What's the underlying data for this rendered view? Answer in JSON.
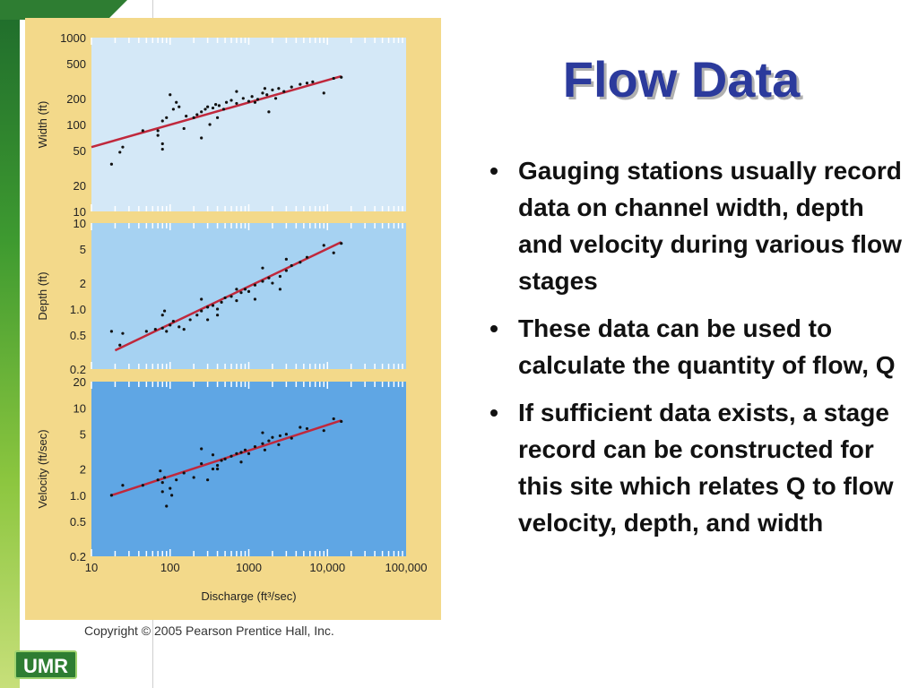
{
  "slide": {
    "title": "Flow Data",
    "bullets": [
      "Gauging stations usually record data on channel width, depth and velocity during various flow stages",
      "These data can be used to calculate the quantity of flow, Q",
      "If sufficient data exists, a stage record can be constructed for this site which relates Q to flow velocity, depth, and width"
    ],
    "bullet_symbol": "•",
    "copyright": "Copyright © 2005 Pearson Prentice Hall, Inc.",
    "logo_text": "UMR"
  },
  "chart_data": [
    {
      "type": "scatter",
      "xlabel": "Discharge (ft³/sec)",
      "ylabel": "Width (ft)",
      "xscale": "log",
      "yscale": "log",
      "xlim": [
        10,
        100000
      ],
      "ylim": [
        10,
        1000
      ],
      "ytick_labels": [
        "1000",
        "500",
        "200",
        "100",
        "50",
        "20",
        "10"
      ],
      "yticks": [
        1000,
        500,
        200,
        100,
        50,
        20,
        10
      ],
      "background": "#d4e8f7",
      "fit_line": [
        [
          10,
          55
        ],
        [
          15000,
          360
        ]
      ],
      "points": [
        [
          18,
          35
        ],
        [
          23,
          48
        ],
        [
          25,
          55
        ],
        [
          80,
          52
        ],
        [
          80,
          60
        ],
        [
          45,
          85
        ],
        [
          70,
          85
        ],
        [
          80,
          110
        ],
        [
          70,
          75
        ],
        [
          90,
          120
        ],
        [
          100,
          220
        ],
        [
          110,
          150
        ],
        [
          120,
          180
        ],
        [
          130,
          160
        ],
        [
          160,
          125
        ],
        [
          200,
          120
        ],
        [
          220,
          130
        ],
        [
          250,
          140
        ],
        [
          280,
          150
        ],
        [
          300,
          160
        ],
        [
          350,
          155
        ],
        [
          380,
          170
        ],
        [
          420,
          165
        ],
        [
          480,
          150
        ],
        [
          520,
          180
        ],
        [
          600,
          190
        ],
        [
          700,
          175
        ],
        [
          850,
          200
        ],
        [
          1000,
          185
        ],
        [
          1100,
          210
        ],
        [
          1300,
          195
        ],
        [
          1500,
          230
        ],
        [
          1700,
          220
        ],
        [
          2000,
          250
        ],
        [
          2400,
          260
        ],
        [
          2800,
          240
        ],
        [
          3500,
          270
        ],
        [
          4500,
          290
        ],
        [
          5500,
          300
        ],
        [
          6500,
          310
        ],
        [
          9000,
          230
        ],
        [
          12000,
          340
        ],
        [
          15000,
          350
        ],
        [
          150,
          90
        ],
        [
          250,
          70
        ],
        [
          320,
          100
        ],
        [
          400,
          120
        ],
        [
          1800,
          140
        ],
        [
          1200,
          180
        ],
        [
          700,
          240
        ],
        [
          1600,
          260
        ],
        [
          2200,
          200
        ]
      ],
      "point_color": "#111111",
      "line_color": "#c0283c"
    },
    {
      "type": "scatter",
      "xlabel": "Discharge (ft³/sec)",
      "ylabel": "Depth (ft)",
      "xscale": "log",
      "yscale": "log",
      "xlim": [
        10,
        100000
      ],
      "ylim": [
        0.2,
        10
      ],
      "ytick_labels": [
        "10",
        "5",
        "2",
        "1.0",
        "0.5",
        "0.2"
      ],
      "yticks": [
        10,
        5,
        2,
        1.0,
        0.5,
        0.2
      ],
      "background": "#a6d2f2",
      "fit_line": [
        [
          20,
          0.33
        ],
        [
          15000,
          6.0
        ]
      ],
      "points": [
        [
          18,
          0.55
        ],
        [
          25,
          0.52
        ],
        [
          23,
          0.38
        ],
        [
          50,
          0.55
        ],
        [
          65,
          0.58
        ],
        [
          80,
          0.6
        ],
        [
          80,
          0.85
        ],
        [
          85,
          0.95
        ],
        [
          90,
          0.55
        ],
        [
          100,
          0.65
        ],
        [
          110,
          0.72
        ],
        [
          130,
          0.62
        ],
        [
          150,
          0.58
        ],
        [
          180,
          0.75
        ],
        [
          220,
          0.85
        ],
        [
          250,
          0.95
        ],
        [
          300,
          1.05
        ],
        [
          350,
          1.1
        ],
        [
          400,
          1.0
        ],
        [
          450,
          1.2
        ],
        [
          500,
          1.35
        ],
        [
          600,
          1.4
        ],
        [
          700,
          1.25
        ],
        [
          800,
          1.55
        ],
        [
          900,
          1.7
        ],
        [
          1000,
          1.6
        ],
        [
          1200,
          1.9
        ],
        [
          1500,
          2.1
        ],
        [
          1800,
          2.3
        ],
        [
          2000,
          2.0
        ],
        [
          2500,
          2.4
        ],
        [
          3000,
          2.8
        ],
        [
          3500,
          3.2
        ],
        [
          4500,
          3.5
        ],
        [
          5500,
          4.0
        ],
        [
          9000,
          5.5
        ],
        [
          12000,
          4.5
        ],
        [
          15000,
          5.8
        ],
        [
          300,
          0.75
        ],
        [
          250,
          1.3
        ],
        [
          400,
          0.85
        ],
        [
          700,
          1.7
        ],
        [
          1200,
          1.3
        ],
        [
          1500,
          3.0
        ],
        [
          2500,
          1.7
        ],
        [
          3000,
          3.8
        ]
      ],
      "point_color": "#111111",
      "line_color": "#c0283c"
    },
    {
      "type": "scatter",
      "xlabel": "Discharge (ft³/sec)",
      "ylabel": "Velocity (ft/sec)",
      "xscale": "log",
      "yscale": "log",
      "xlim": [
        10,
        100000
      ],
      "ylim": [
        0.2,
        20
      ],
      "ytick_labels": [
        "20",
        "10",
        "5",
        "2",
        "1.0",
        "0.5",
        "0.2"
      ],
      "yticks": [
        20,
        10,
        5,
        2,
        1.0,
        0.5,
        0.2
      ],
      "xtick_labels": [
        "10",
        "100",
        "1000",
        "10,000",
        "100,000"
      ],
      "xticks": [
        10,
        100,
        1000,
        10000,
        100000
      ],
      "background": "#5fa6e4",
      "fit_line": [
        [
          18,
          1.0
        ],
        [
          15000,
          7.2
        ]
      ],
      "points": [
        [
          18,
          1.0
        ],
        [
          25,
          1.3
        ],
        [
          45,
          1.3
        ],
        [
          70,
          1.5
        ],
        [
          75,
          1.9
        ],
        [
          80,
          1.1
        ],
        [
          80,
          1.4
        ],
        [
          85,
          1.6
        ],
        [
          90,
          0.75
        ],
        [
          100,
          1.2
        ],
        [
          105,
          1.0
        ],
        [
          120,
          1.5
        ],
        [
          150,
          1.8
        ],
        [
          200,
          1.6
        ],
        [
          250,
          2.3
        ],
        [
          300,
          1.5
        ],
        [
          350,
          2.0
        ],
        [
          400,
          2.2
        ],
        [
          450,
          2.5
        ],
        [
          500,
          2.6
        ],
        [
          600,
          2.8
        ],
        [
          700,
          3.0
        ],
        [
          800,
          3.1
        ],
        [
          900,
          3.3
        ],
        [
          1000,
          3.0
        ],
        [
          1200,
          3.6
        ],
        [
          1500,
          3.9
        ],
        [
          1800,
          4.2
        ],
        [
          2000,
          4.6
        ],
        [
          2500,
          4.8
        ],
        [
          3000,
          5.0
        ],
        [
          3500,
          4.5
        ],
        [
          4500,
          6.0
        ],
        [
          5500,
          5.8
        ],
        [
          9000,
          5.5
        ],
        [
          12000,
          7.5
        ],
        [
          15000,
          7.0
        ],
        [
          250,
          3.4
        ],
        [
          350,
          2.9
        ],
        [
          400,
          2.0
        ],
        [
          800,
          2.4
        ],
        [
          1600,
          3.3
        ],
        [
          1500,
          5.2
        ],
        [
          2400,
          3.8
        ]
      ],
      "point_color": "#111111",
      "line_color": "#c0283c"
    }
  ]
}
